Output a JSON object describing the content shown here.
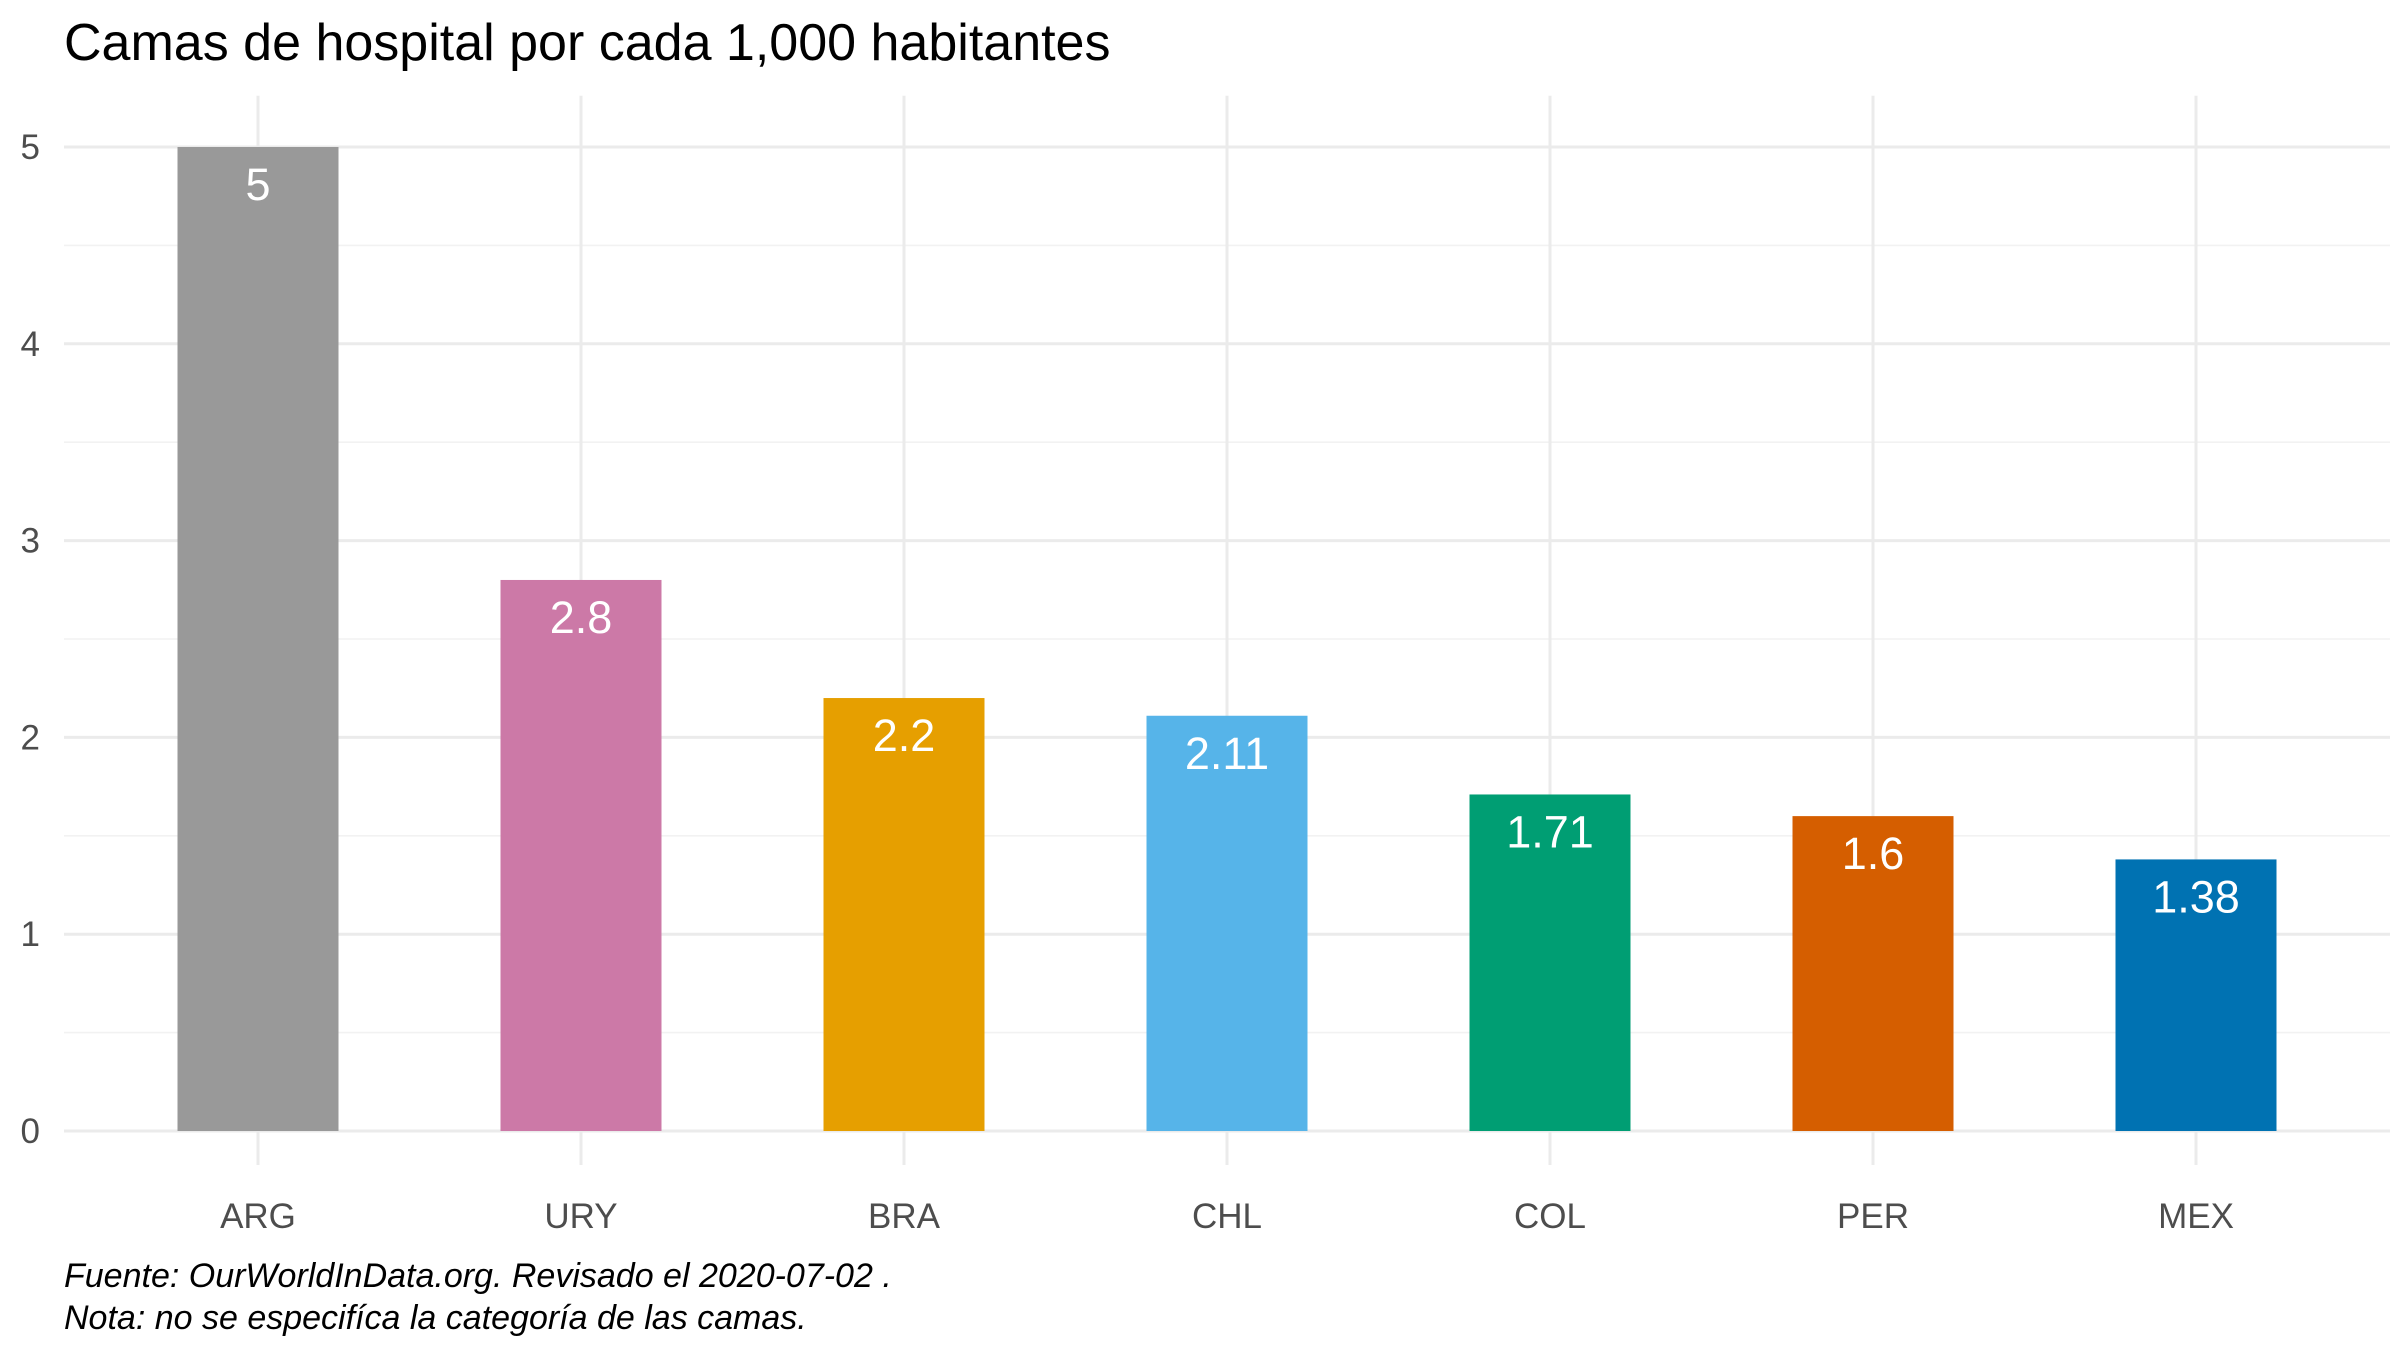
{
  "chart_data": {
    "type": "bar",
    "title": "Camas de hospital por cada 1,000 habitantes",
    "xlabel": "",
    "ylabel": "",
    "categories": [
      "ARG",
      "URY",
      "BRA",
      "CHL",
      "COL",
      "PER",
      "MEX"
    ],
    "values": [
      5,
      2.8,
      2.2,
      2.11,
      1.71,
      1.6,
      1.38
    ],
    "data_labels": [
      "5",
      "2.8",
      "2.2",
      "2.11",
      "1.71",
      "1.6",
      "1.38"
    ],
    "colors": [
      "#999999",
      "#CC79A7",
      "#E69F00",
      "#56B4E9",
      "#009E73",
      "#D55E00",
      "#0072B2"
    ],
    "ylim": [
      0,
      5.25
    ],
    "yticks": [
      0,
      1,
      2,
      3,
      4,
      5
    ],
    "ytick_labels": [
      "0",
      "1",
      "2",
      "3",
      "4",
      "5"
    ],
    "grid": true,
    "legend": "none",
    "caption": [
      "Fuente: OurWorldInData.org. Revisado el 2020-07-02 .",
      "Nota: no se especifíca la categoría de las camas."
    ]
  }
}
